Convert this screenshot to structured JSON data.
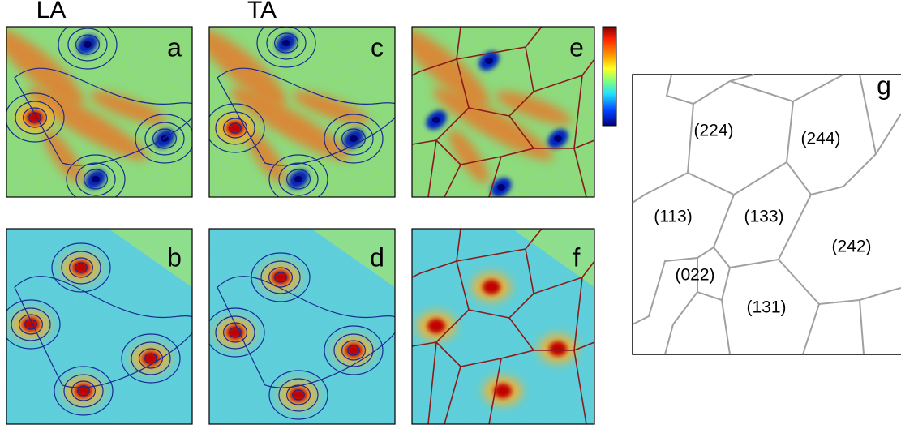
{
  "column_headers": [
    "LA",
    "TA"
  ],
  "panels": [
    {
      "label": "a"
    },
    {
      "label": "b"
    },
    {
      "label": "c"
    },
    {
      "label": "d"
    },
    {
      "label": "e"
    },
    {
      "label": "f"
    }
  ],
  "panel_g": {
    "label": "g",
    "regions": [
      "(224)",
      "(244)",
      "(113)",
      "(133)",
      "(242)",
      "(022)",
      "(131)"
    ]
  }
}
